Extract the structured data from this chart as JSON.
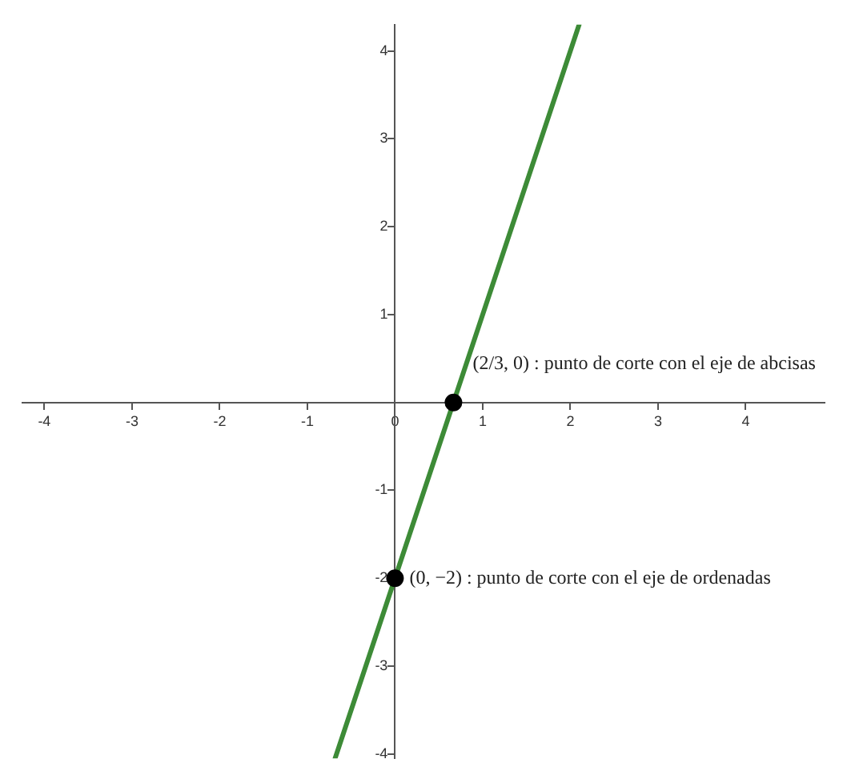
{
  "chart_data": {
    "type": "line",
    "xlim": [
      -4.25,
      4.9
    ],
    "ylim": [
      -4.05,
      4.3
    ],
    "xticks": [
      -4,
      -3,
      -2,
      -1,
      0,
      1,
      2,
      3,
      4
    ],
    "yticks": [
      -4,
      -3,
      -2,
      -1,
      1,
      2,
      3,
      4
    ],
    "grid": false,
    "legend": false,
    "series": [
      {
        "type": "line",
        "color": "#3d8b37",
        "x": [
          -0.6833,
          2.1
        ],
        "values": [
          -4.05,
          4.3
        ],
        "marker": "none",
        "line_style": "solid"
      },
      {
        "type": "scatter",
        "color": "#000000",
        "x": [
          0.6667,
          0
        ],
        "values": [
          0,
          -2
        ],
        "marker": "circle"
      }
    ],
    "annotations": [
      {
        "text": "(2/3, 0) : punto de corte con el eje de abcisas",
        "x": 0.6667,
        "y": 0
      },
      {
        "text": "(0, −2) : punto de corte con el eje de ordenadas",
        "x": 0,
        "y": -2
      }
    ]
  }
}
